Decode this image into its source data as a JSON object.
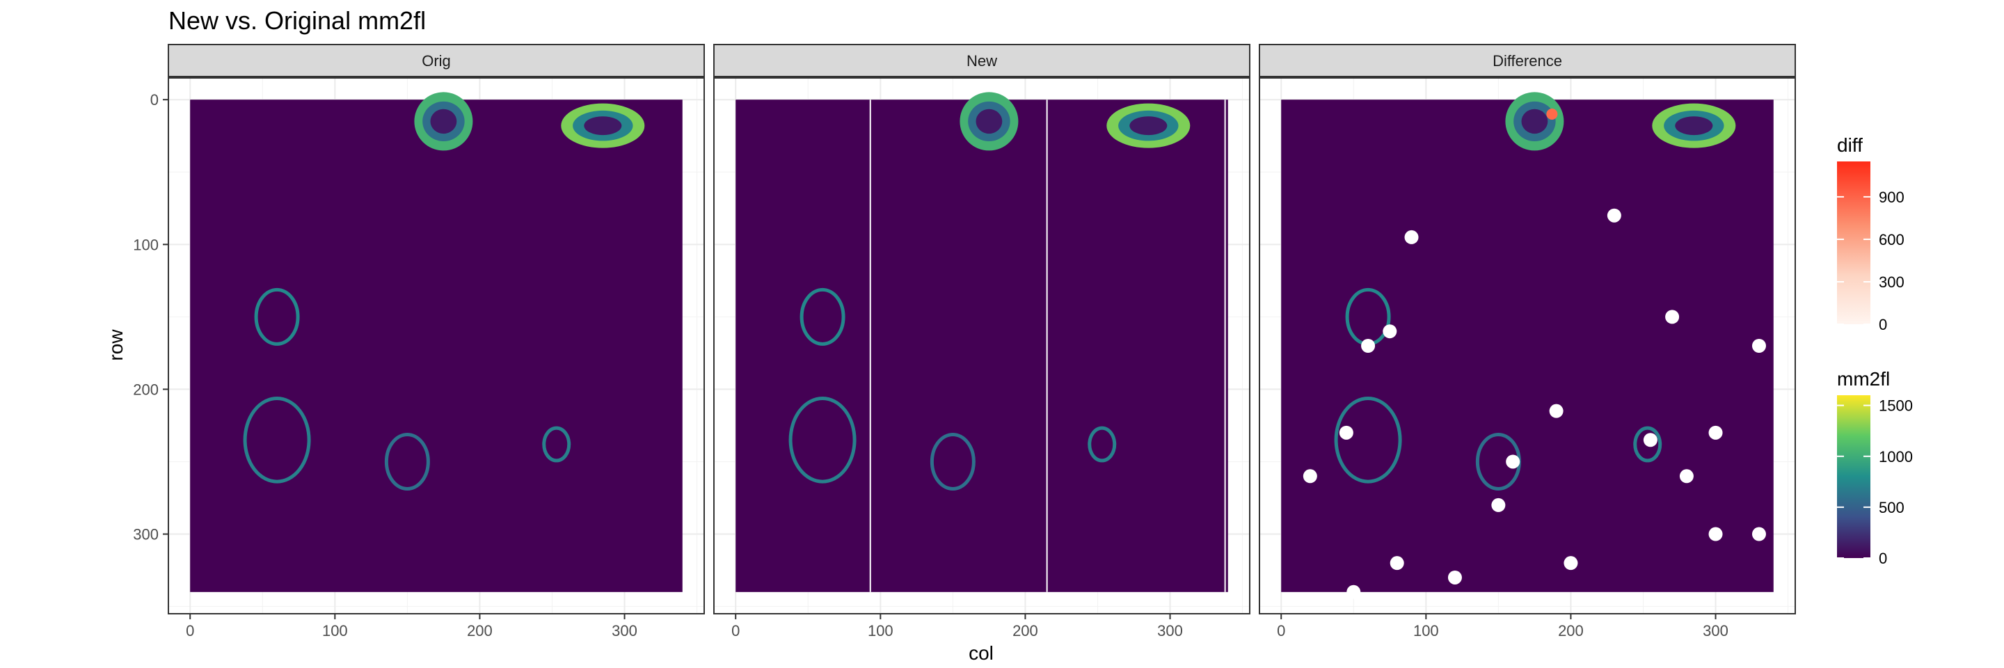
{
  "title": "New vs. Original mm2fl",
  "chart_data": {
    "type": "heatmap",
    "title": "New vs. Original mm2fl",
    "xlabel": "col",
    "ylabel": "row",
    "facets": [
      "Orig",
      "New",
      "Difference"
    ],
    "xlim": [
      -15,
      355
    ],
    "ylim": [
      355,
      -15
    ],
    "y_reversed": true,
    "x_ticks": [
      0,
      100,
      200,
      300
    ],
    "y_ticks": [
      0,
      100,
      200,
      300
    ],
    "grid": true,
    "raster_extent": {
      "col": [
        0,
        340
      ],
      "row": [
        0,
        340
      ]
    },
    "background_value": 0,
    "legend_position": "right",
    "legends": [
      {
        "name": "diff",
        "ticks": [
          0,
          300,
          600,
          900
        ],
        "range": [
          0,
          1150
        ],
        "low_color": "#fff5f0",
        "high_color": "#ff2b16"
      },
      {
        "name": "mm2fl",
        "ticks": [
          0,
          500,
          1000,
          1500
        ],
        "range": [
          0,
          1600
        ],
        "colors": [
          "#440154",
          "#3b528b",
          "#21908c",
          "#5dc963",
          "#fde725"
        ]
      }
    ],
    "features": [
      {
        "facet": "Orig",
        "label": "top-center blob",
        "col": 175,
        "row": 15,
        "value_range": [
          0,
          1300
        ]
      },
      {
        "facet": "Orig",
        "label": "top-right blob",
        "col": 285,
        "row": 18,
        "value_range": [
          0,
          1600
        ]
      },
      {
        "facet": "Orig",
        "label": "left ring",
        "col": 60,
        "row": 150,
        "value_range": [
          400,
          1100
        ]
      },
      {
        "facet": "Orig",
        "label": "lower-left curve",
        "col": 60,
        "row": 235,
        "value_range": [
          400,
          1000
        ]
      },
      {
        "facet": "Orig",
        "label": "center loop",
        "col": 150,
        "row": 250,
        "value_range": [
          300,
          900
        ]
      },
      {
        "facet": "Orig",
        "label": "right small loop",
        "col": 253,
        "row": 238,
        "value_range": [
          400,
          1000
        ]
      },
      {
        "facet": "New",
        "label": "vertical white lines",
        "cols": [
          93,
          215,
          338
        ]
      }
    ]
  },
  "colors": {
    "background_fill": "#440154",
    "strip_fill": "#d9d9d9",
    "white_pixels": "#ffffff"
  }
}
